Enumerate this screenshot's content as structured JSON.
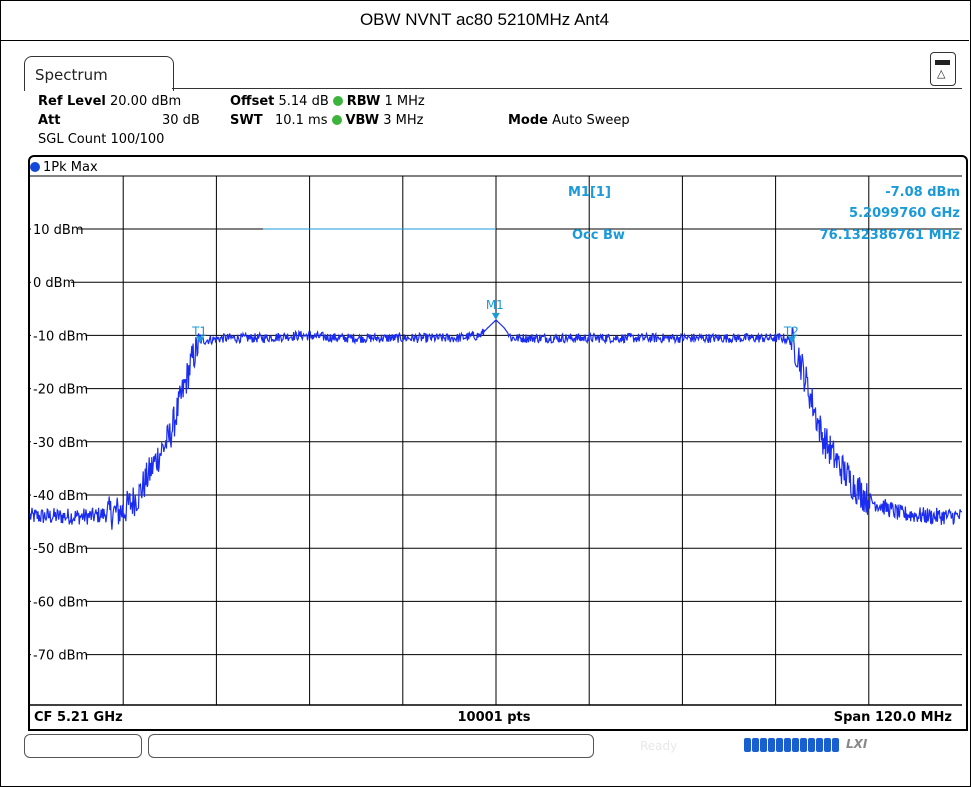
{
  "page": {
    "title": "OBW NVNT ac80 5210MHz Ant4"
  },
  "tab": {
    "label": "Spectrum"
  },
  "settings": {
    "ref_level_label": "Ref Level",
    "ref_level_value": "20.00 dBm",
    "offset_label": "Offset",
    "offset_value": "5.14 dB",
    "rbw_label": "RBW",
    "rbw_value": "1 MHz",
    "att_label": "Att",
    "att_value": "30 dB",
    "swt_label": "SWT",
    "swt_value": "10.1 ms",
    "vbw_label": "VBW",
    "vbw_value": "3 MHz",
    "mode_label": "Mode",
    "mode_value": "Auto Sweep",
    "sgl_count": "SGL Count 100/100"
  },
  "trace_legend": "1Pk Max",
  "marker_readout": {
    "name": "M1[1]",
    "level": "-7.08 dBm",
    "freq": "5.2099760 GHz",
    "occ_label": "Occ Bw",
    "occ_value": "76.132386761 MHz"
  },
  "footer": {
    "cf": "CF 5.21 GHz",
    "pts": "10001 pts",
    "span": "Span 120.0 MHz"
  },
  "status": {
    "ready": "Ready",
    "lxi": "LXI"
  },
  "colors": {
    "trace": "#1a2cf0",
    "marker": "#1a9ad8",
    "grid": "#000000"
  },
  "chart_data": {
    "type": "line",
    "xlabel": "",
    "ylabel": "",
    "x_unit": "MHz",
    "xlim": [
      5150,
      5270
    ],
    "ylim": [
      -80,
      20
    ],
    "y_ticks": [
      10,
      0,
      -10,
      -20,
      -30,
      -40,
      -50,
      -60,
      -70
    ],
    "y_tick_labels": [
      "10 dBm",
      "0 dBm",
      "-10 dBm",
      "-20 dBm",
      "-30 dBm",
      "-40 dBm",
      "-50 dBm",
      "-60 dBm",
      "-70 dBm"
    ],
    "grid": true,
    "series": [
      {
        "x": [
          5150,
          5154,
          5158,
          5160,
          5162,
          5164,
          5165,
          5166,
          5168,
          5169,
          5170,
          5171,
          5172,
          5175,
          5180,
          5185,
          5190,
          5195,
          5200,
          5205,
          5208,
          5209,
          5210,
          5211,
          5212,
          5215,
          5220,
          5225,
          5230,
          5235,
          5240,
          5245,
          5247,
          5248,
          5249,
          5250,
          5251,
          5252,
          5254,
          5256,
          5258,
          5262,
          5266,
          5270
        ],
        "y": [
          -44,
          -44,
          -44,
          -43.5,
          -43,
          -40,
          -37,
          -34,
          -29,
          -24,
          -19,
          -14,
          -11,
          -10.5,
          -10.5,
          -10,
          -10.5,
          -10.5,
          -10.5,
          -10.5,
          -10,
          -8.5,
          -7.1,
          -8.5,
          -10.5,
          -10.5,
          -10.5,
          -10.5,
          -10.5,
          -10.5,
          -10.5,
          -10.5,
          -10.5,
          -11,
          -14,
          -19,
          -24,
          -29,
          -34,
          -38,
          -41,
          -43.5,
          -44,
          -44
        ]
      }
    ],
    "markers": [
      {
        "label": "T1",
        "x": 5171.9,
        "y": -11.5
      },
      {
        "label": "M1",
        "x": 5209.976,
        "y": -7.08
      },
      {
        "label": "T2",
        "x": 5248.1,
        "y": -11.5
      }
    ],
    "reference_line": {
      "label": "Occ Bw",
      "y": 10
    }
  }
}
